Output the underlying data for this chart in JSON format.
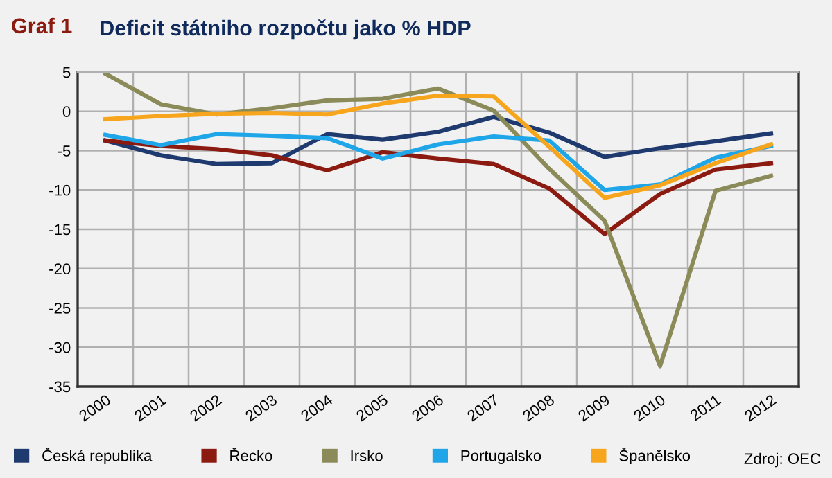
{
  "chart_data": {
    "type": "line",
    "title": "Deficit státniho rozpočtu jako % HDP",
    "annotations": [
      "Graf 1",
      "Zdroj: OEC"
    ],
    "categories": [
      "2000",
      "2001",
      "2002",
      "2003",
      "2004",
      "2005",
      "2006",
      "2007",
      "2008",
      "2009",
      "2010",
      "2011",
      "2012"
    ],
    "series": [
      {
        "name": "Česká republika",
        "color": "#1f3a6e",
        "values": [
          -3.7,
          -5.6,
          -6.7,
          -6.6,
          -2.9,
          -3.6,
          -2.6,
          -0.7,
          -2.7,
          -5.8,
          -4.7,
          -3.8,
          -2.8
        ]
      },
      {
        "name": "Řecko",
        "color": "#8b1a10",
        "values": [
          -3.7,
          -4.4,
          -4.8,
          -5.6,
          -7.5,
          -5.2,
          -6.0,
          -6.7,
          -9.8,
          -15.6,
          -10.5,
          -7.4,
          -6.6
        ]
      },
      {
        "name": "Irsko",
        "color": "#8b8b5a",
        "values": [
          4.8,
          0.9,
          -0.4,
          0.4,
          1.4,
          1.6,
          2.9,
          0.1,
          -7.3,
          -13.9,
          -32.4,
          -10.1,
          -8.2
        ]
      },
      {
        "name": "Portugalsko",
        "color": "#1ea6e8",
        "values": [
          -3.0,
          -4.3,
          -2.9,
          -3.1,
          -3.4,
          -6.0,
          -4.2,
          -3.2,
          -3.7,
          -10.0,
          -9.3,
          -5.9,
          -4.4
        ]
      },
      {
        "name": "Španělsko",
        "color": "#f7a51c",
        "values": [
          -1.0,
          -0.6,
          -0.3,
          -0.2,
          -0.4,
          1.0,
          2.0,
          1.9,
          -4.5,
          -11.0,
          -9.4,
          -6.6,
          -4.2
        ]
      }
    ],
    "ylim": [
      -35,
      5
    ],
    "yticks": [
      5,
      0,
      {
        "value": -5,
        "label": "-5"
      },
      {
        "value": -10,
        "label": "-10"
      },
      {
        "value": -15,
        "label": "-15"
      },
      {
        "value": -20,
        "label": "-20"
      },
      {
        "value": -25,
        "label": "-25"
      },
      {
        "value": -30,
        "label": "-30"
      },
      {
        "value": -35,
        "label": "-35"
      }
    ],
    "grid": true,
    "legend": "bottom",
    "marker": "none",
    "line_style": "solid"
  }
}
